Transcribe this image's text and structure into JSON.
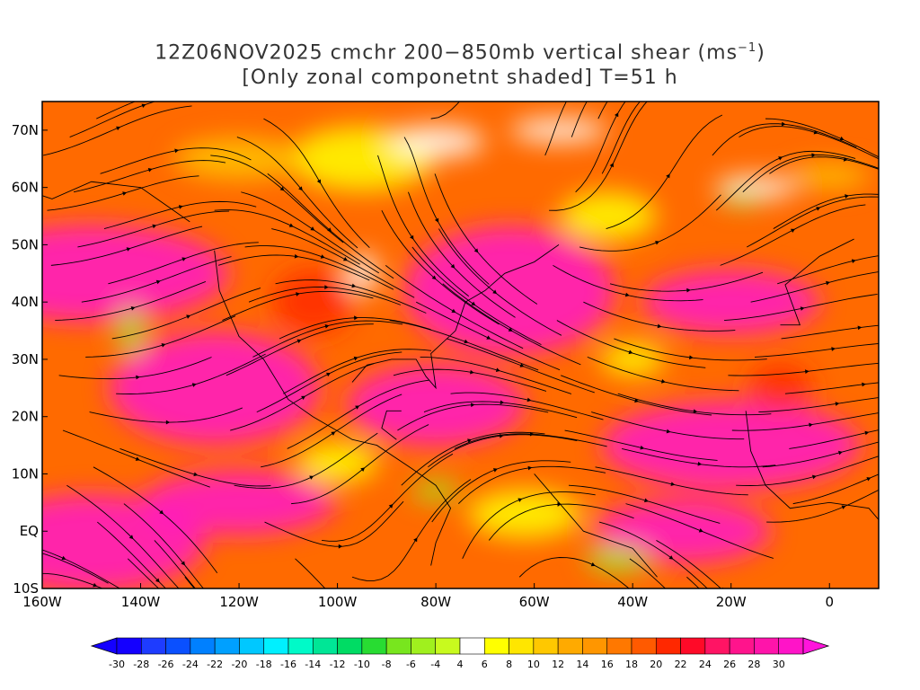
{
  "title": {
    "line1_pre": "12Z06NOV2025 cmchr 200−850mb vertical shear (ms",
    "line1_sup": "−1",
    "line1_post": ")",
    "line2": "[Only zonal componetnt shaded] T=51 h"
  },
  "map": {
    "lon_range": [
      -160,
      10
    ],
    "lat_range": [
      -10,
      75
    ],
    "lat_ticks": [
      "70N",
      "60N",
      "50N",
      "40N",
      "30N",
      "20N",
      "10N",
      "EQ",
      "10S"
    ],
    "lat_tick_values": [
      70,
      60,
      50,
      40,
      30,
      20,
      10,
      0,
      -10
    ],
    "lon_ticks": [
      "160W",
      "140W",
      "120W",
      "100W",
      "80W",
      "60W",
      "40W",
      "20W",
      "0"
    ],
    "lon_tick_values": [
      -160,
      -140,
      -120,
      -100,
      -80,
      -60,
      -40,
      -20,
      0
    ],
    "field": "zonal component of 200-850mb vertical shear",
    "overlay": "streamlines"
  },
  "colorbar": {
    "labels": [
      "-30",
      "-28",
      "-26",
      "-24",
      "-22",
      "-20",
      "-18",
      "-16",
      "-14",
      "-12",
      "-10",
      "-8",
      "-6",
      "-4",
      "4",
      "6",
      "8",
      "10",
      "12",
      "14",
      "16",
      "18",
      "20",
      "22",
      "24",
      "26",
      "28",
      "30"
    ],
    "colors": [
      "#1400ff",
      "#1e3cff",
      "#0a50ff",
      "#0080ff",
      "#00a0ff",
      "#00c8ff",
      "#00f0ff",
      "#00fac8",
      "#00e696",
      "#00dc64",
      "#28dc32",
      "#78e61e",
      "#a0f01e",
      "#c8fa1e",
      "#ffffff",
      "#ffff00",
      "#ffe600",
      "#ffc800",
      "#ffaa00",
      "#ff9600",
      "#ff7800",
      "#ff5a00",
      "#ff2800",
      "#ff0a28",
      "#ff1464",
      "#ff148c",
      "#ff14aa",
      "#ff14c8"
    ],
    "low_arrow_color": "#1400ff",
    "high_arrow_color": "#ff14dc"
  }
}
